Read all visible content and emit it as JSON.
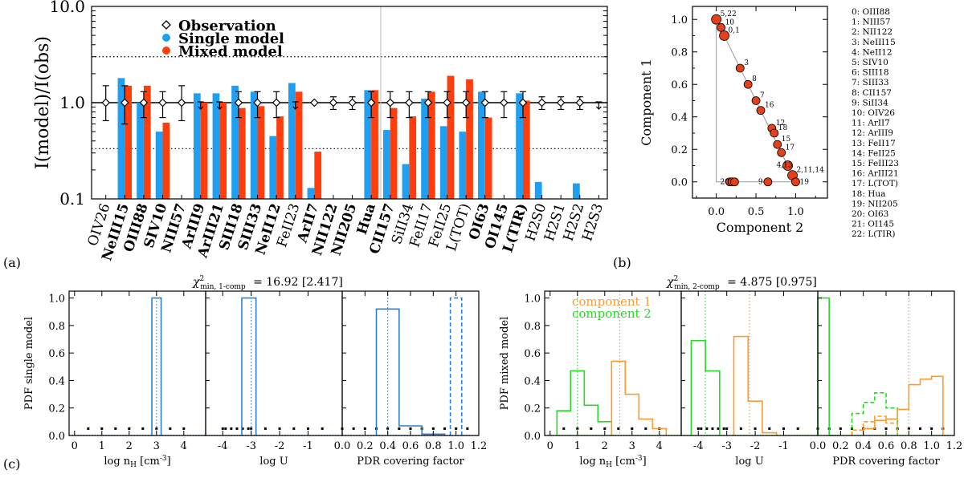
{
  "panel_labels": {
    "a": "(a)",
    "b": "(b)",
    "c": "(c)"
  },
  "colors": {
    "single": "#1e9ff2",
    "mixed": "#ff3d0d",
    "component1": "#ff9a2e",
    "component2": "#22dd22",
    "pdf_single": "#2f7fd0",
    "marker": "#e5401a"
  },
  "chart_data": [
    {
      "id": "a",
      "type": "bar",
      "ylabel": "I(model)/I(obs)",
      "ylim": [
        0.1,
        10.0
      ],
      "log_y": true,
      "yticks": [
        "0.1",
        "1.0",
        "10.0"
      ],
      "reference_lines": [
        1.0,
        3.0,
        0.333
      ],
      "legend": {
        "placement": "top-left",
        "entries": [
          "Observation",
          "Single model",
          "Mixed model"
        ]
      },
      "categories": [
        "OIV26",
        "NeIII15",
        "OIII88",
        "SIV10",
        "NIII57",
        "ArIII9",
        "ArIII21",
        "SIII18",
        "SIII33",
        "NeII12",
        "FeII23",
        "ArII7",
        "NII122",
        "NII205",
        "Hua",
        "CII157",
        "SiII34",
        "FeII17",
        "FeII25",
        "L(TOT)",
        "OI63",
        "OI145",
        "L(TIR)",
        "H2S0",
        "H2S1",
        "H2S2",
        "H2S3"
      ],
      "category_bold": [
        false,
        true,
        true,
        true,
        true,
        true,
        true,
        true,
        true,
        true,
        false,
        true,
        true,
        true,
        true,
        true,
        false,
        false,
        false,
        false,
        true,
        true,
        true,
        false,
        false,
        false,
        false
      ],
      "series": [
        {
          "name": "Single model",
          "values": [
            null,
            1.8,
            1.0,
            0.5,
            null,
            1.25,
            1.25,
            1.5,
            1.3,
            0.45,
            1.6,
            0.13,
            null,
            null,
            1.35,
            0.52,
            0.23,
            1.1,
            0.57,
            0.5,
            1.3,
            null,
            1.25,
            0.15,
            null,
            0.145,
            null
          ]
        },
        {
          "name": "Mixed model",
          "values": [
            null,
            1.5,
            1.5,
            0.62,
            null,
            1.0,
            1.0,
            0.88,
            0.92,
            0.72,
            1.3,
            0.31,
            null,
            null,
            1.35,
            0.88,
            0.72,
            1.3,
            1.9,
            1.75,
            0.7,
            null,
            1.05,
            null,
            null,
            null,
            null
          ]
        }
      ],
      "observations": {
        "name": "Observation",
        "value": 1.0,
        "err_low": [
          0.35,
          0.4,
          0.3,
          0.3,
          0.35,
          null,
          null,
          0.3,
          0.3,
          0.3,
          null,
          null,
          0.15,
          0.15,
          0.3,
          0.3,
          0.3,
          0.3,
          0.3,
          0.3,
          0.3,
          0.3,
          0.3,
          0.15,
          0.15,
          0.15,
          null
        ],
        "err_high": [
          0.5,
          0.5,
          0.3,
          0.3,
          0.5,
          null,
          null,
          0.3,
          0.3,
          0.3,
          null,
          null,
          0.15,
          0.15,
          0.3,
          0.3,
          0.3,
          0.3,
          0.3,
          0.3,
          0.3,
          0.3,
          0.3,
          0.15,
          0.15,
          0.15,
          null
        ],
        "upper_limits": [
          "ArIII9",
          "ArIII21",
          "FeII23",
          "H2S3"
        ]
      }
    },
    {
      "id": "b",
      "type": "scatter",
      "xlabel": "Component 2",
      "ylabel": "Component 1",
      "xlim": [
        -0.3,
        1.4
      ],
      "ylim": [
        -0.1,
        1.08
      ],
      "xticks": [
        "0.0",
        "0.5",
        "1.0"
      ],
      "yticks": [
        "0.0",
        "0.2",
        "0.4",
        "0.6",
        "0.8",
        "1.0"
      ],
      "points": [
        {
          "label": "5,22",
          "x": 0.0,
          "y": 1.0
        },
        {
          "label": "10",
          "x": 0.06,
          "y": 0.95
        },
        {
          "label": "0,1",
          "x": 0.1,
          "y": 0.9
        },
        {
          "label": "3",
          "x": 0.3,
          "y": 0.7
        },
        {
          "label": "8",
          "x": 0.4,
          "y": 0.6
        },
        {
          "label": "7",
          "x": 0.5,
          "y": 0.5
        },
        {
          "label": "16",
          "x": 0.56,
          "y": 0.44
        },
        {
          "label": "12",
          "x": 0.7,
          "y": 0.33
        },
        {
          "label": "18",
          "x": 0.73,
          "y": 0.3
        },
        {
          "label": "15",
          "x": 0.77,
          "y": 0.23
        },
        {
          "label": "17",
          "x": 0.82,
          "y": 0.18
        },
        {
          "label": "4,13",
          "x": 0.9,
          "y": 0.1
        },
        {
          "label": "2,11,14",
          "x": 0.96,
          "y": 0.04
        },
        {
          "label": "19",
          "x": 1.0,
          "y": 0.0
        },
        {
          "label": "9",
          "x": 0.65,
          "y": 0.0
        },
        {
          "label": "20",
          "x": 0.17,
          "y": 0.0
        },
        {
          "label": "",
          "x": 0.2,
          "y": 0.0
        },
        {
          "label": "",
          "x": 0.23,
          "y": 0.0
        }
      ],
      "line_index": [
        "0: OIII88",
        "1: NIII57",
        "2: NII122",
        "3: NeIII15",
        "4: NeII12",
        "5: SIV10",
        "6: SIII18",
        "7: SIII33",
        "8: CII157",
        "9: SiII34",
        "10: OIV26",
        "11:   ArII7",
        "12: ArIII9",
        "13: FeII17",
        "14: FeII25",
        "15: FeIII23",
        "16: ArIII21",
        "17: L(TOT)",
        "18:   Hua",
        "19: NII205",
        "20: OI63",
        "21: OI145",
        "22: L(TIR)"
      ]
    },
    {
      "id": "c-single",
      "type": "histogram",
      "title_prefix": "χ",
      "title_sup": "2",
      "title_sub": "min, 1-comp",
      "title_value": "= 16.92 [2.417]",
      "ylabel": "PDF single model",
      "ylim": [
        0,
        1.05
      ],
      "yticks": [
        "0.0",
        "0.2",
        "0.4",
        "0.6",
        "0.8",
        "1.0"
      ],
      "subplots": [
        {
          "xlabel": "log n_H [cm^-3]",
          "xlim": [
            -0.2,
            4.8
          ],
          "xticks": [
            "0",
            "1",
            "2",
            "3",
            "4"
          ],
          "series": [
            {
              "style": "solid",
              "edges": [
                2.83,
                3.17
              ],
              "values": [
                1.0
              ]
            }
          ],
          "vlines": [
            3.0
          ],
          "grid_points": [
            0.5,
            1.0,
            1.5,
            2.0,
            2.5,
            3.0,
            3.5,
            4.0
          ]
        },
        {
          "xlabel": "log U",
          "xlim": [
            -4.6,
            0.2
          ],
          "xticks": [
            "-4",
            "-3",
            "-2",
            "-1"
          ],
          "series": [
            {
              "style": "solid",
              "edges": [
                -3.33,
                -2.83
              ],
              "values": [
                1.0
              ]
            }
          ],
          "vlines": [
            -3.0
          ],
          "grid_points": [
            -4.0,
            -3.9,
            -3.7,
            -3.5,
            -3.3,
            -3.1,
            -3.0,
            -2.5,
            -2.0,
            -1.5,
            -1.0,
            -0.5
          ]
        },
        {
          "xlabel": "PDR covering factor",
          "xlim": [
            0.0,
            1.2
          ],
          "xticks": [
            "0.0",
            "0.2",
            "0.4",
            "0.6",
            "0.8",
            "1.0",
            "1.2"
          ],
          "series": [
            {
              "style": "solid",
              "edges": [
                0.3,
                0.5,
                0.7,
                0.9
              ],
              "values": [
                0.92,
                0.07,
                0.01
              ]
            },
            {
              "style": "dashed",
              "edges": [
                0.95,
                1.05
              ],
              "values": [
                1.0
              ]
            }
          ],
          "vlines": [
            0.4
          ],
          "grid_points": [
            0.0,
            0.1,
            0.2,
            0.3,
            0.4,
            0.5,
            0.6,
            0.7,
            0.8,
            0.9,
            1.0,
            1.1
          ]
        }
      ]
    },
    {
      "id": "c-mixed",
      "type": "histogram",
      "title_prefix": "χ",
      "title_sup": "2",
      "title_sub": "min, 2-comp",
      "title_value": "= 4.875 [0.975]",
      "ylabel": "PDF mixed model",
      "ylim": [
        0,
        1.05
      ],
      "yticks": [
        "0.0",
        "0.2",
        "0.4",
        "0.6",
        "0.8",
        "1.0"
      ],
      "legend": [
        "component 1",
        "component 2"
      ],
      "subplots": [
        {
          "xlabel": "log n_H [cm^-3]",
          "xlim": [
            -0.2,
            4.8
          ],
          "xticks": [
            "0",
            "1",
            "2",
            "3",
            "4"
          ],
          "series": [
            {
              "component": 2,
              "style": "solid",
              "edges": [
                0.25,
                0.75,
                1.25,
                1.75,
                2.25
              ],
              "values": [
                0.18,
                0.47,
                0.22,
                0.1
              ]
            },
            {
              "component": 1,
              "style": "solid",
              "edges": [
                2.25,
                2.75,
                3.25,
                3.75,
                4.25
              ],
              "values": [
                0.54,
                0.3,
                0.12,
                0.05
              ]
            }
          ],
          "vlines": [
            {
              "component": 2,
              "x": 1.0
            },
            {
              "component": 1,
              "x": 2.55
            }
          ],
          "grid_points": [
            0.5,
            1.0,
            1.5,
            2.0,
            2.5,
            3.0,
            3.5,
            4.0
          ]
        },
        {
          "xlabel": "log U",
          "xlim": [
            -4.6,
            0.2
          ],
          "xticks": [
            "-4",
            "-3",
            "-2",
            "-1"
          ],
          "series": [
            {
              "component": 2,
              "style": "solid",
              "edges": [
                -4.25,
                -3.75,
                -3.25
              ],
              "values": [
                0.69,
                0.47
              ]
            },
            {
              "component": 1,
              "style": "solid",
              "edges": [
                -2.75,
                -2.25,
                -1.75,
                -1.25
              ],
              "values": [
                0.72,
                0.25,
                0.02
              ]
            }
          ],
          "vlines": [
            {
              "component": 2,
              "x": -3.75
            },
            {
              "component": 1,
              "x": -2.2
            }
          ],
          "grid_points": [
            -4.0,
            -3.9,
            -3.7,
            -3.5,
            -3.3,
            -3.1,
            -3.0,
            -2.5,
            -2.0,
            -1.5,
            -1.0,
            -0.5
          ]
        },
        {
          "xlabel": "PDR covering factor",
          "xlim": [
            0.0,
            1.2
          ],
          "xticks": [
            "0.0",
            "0.2",
            "0.4",
            "0.6",
            "0.8",
            "1.0",
            "1.2"
          ],
          "series": [
            {
              "component": 2,
              "style": "solid",
              "edges": [
                0.0,
                0.1,
                0.2
              ],
              "values": [
                1.0,
                0.0
              ]
            },
            {
              "component": 2,
              "style": "dashed",
              "edges": [
                0.3,
                0.4,
                0.5,
                0.6,
                0.7
              ],
              "values": [
                0.16,
                0.24,
                0.31,
                0.2
              ]
            },
            {
              "component": 1,
              "style": "dashed",
              "edges": [
                0.3,
                0.4,
                0.5,
                0.6,
                0.7
              ],
              "values": [
                0.04,
                0.1,
                0.14,
                0.09
              ]
            },
            {
              "component": 1,
              "style": "solid",
              "edges": [
                0.4,
                0.5,
                0.6,
                0.7,
                0.8,
                0.9,
                1.0,
                1.1
              ],
              "values": [
                0.05,
                0.11,
                0.12,
                0.19,
                0.37,
                0.41,
                0.43
              ]
            }
          ],
          "vlines": [
            {
              "component": 1,
              "x": 0.8
            }
          ],
          "grid_points": [
            0.0,
            0.1,
            0.2,
            0.3,
            0.4,
            0.5,
            0.6,
            0.7,
            0.8,
            0.9,
            1.0,
            1.1
          ]
        }
      ]
    }
  ]
}
